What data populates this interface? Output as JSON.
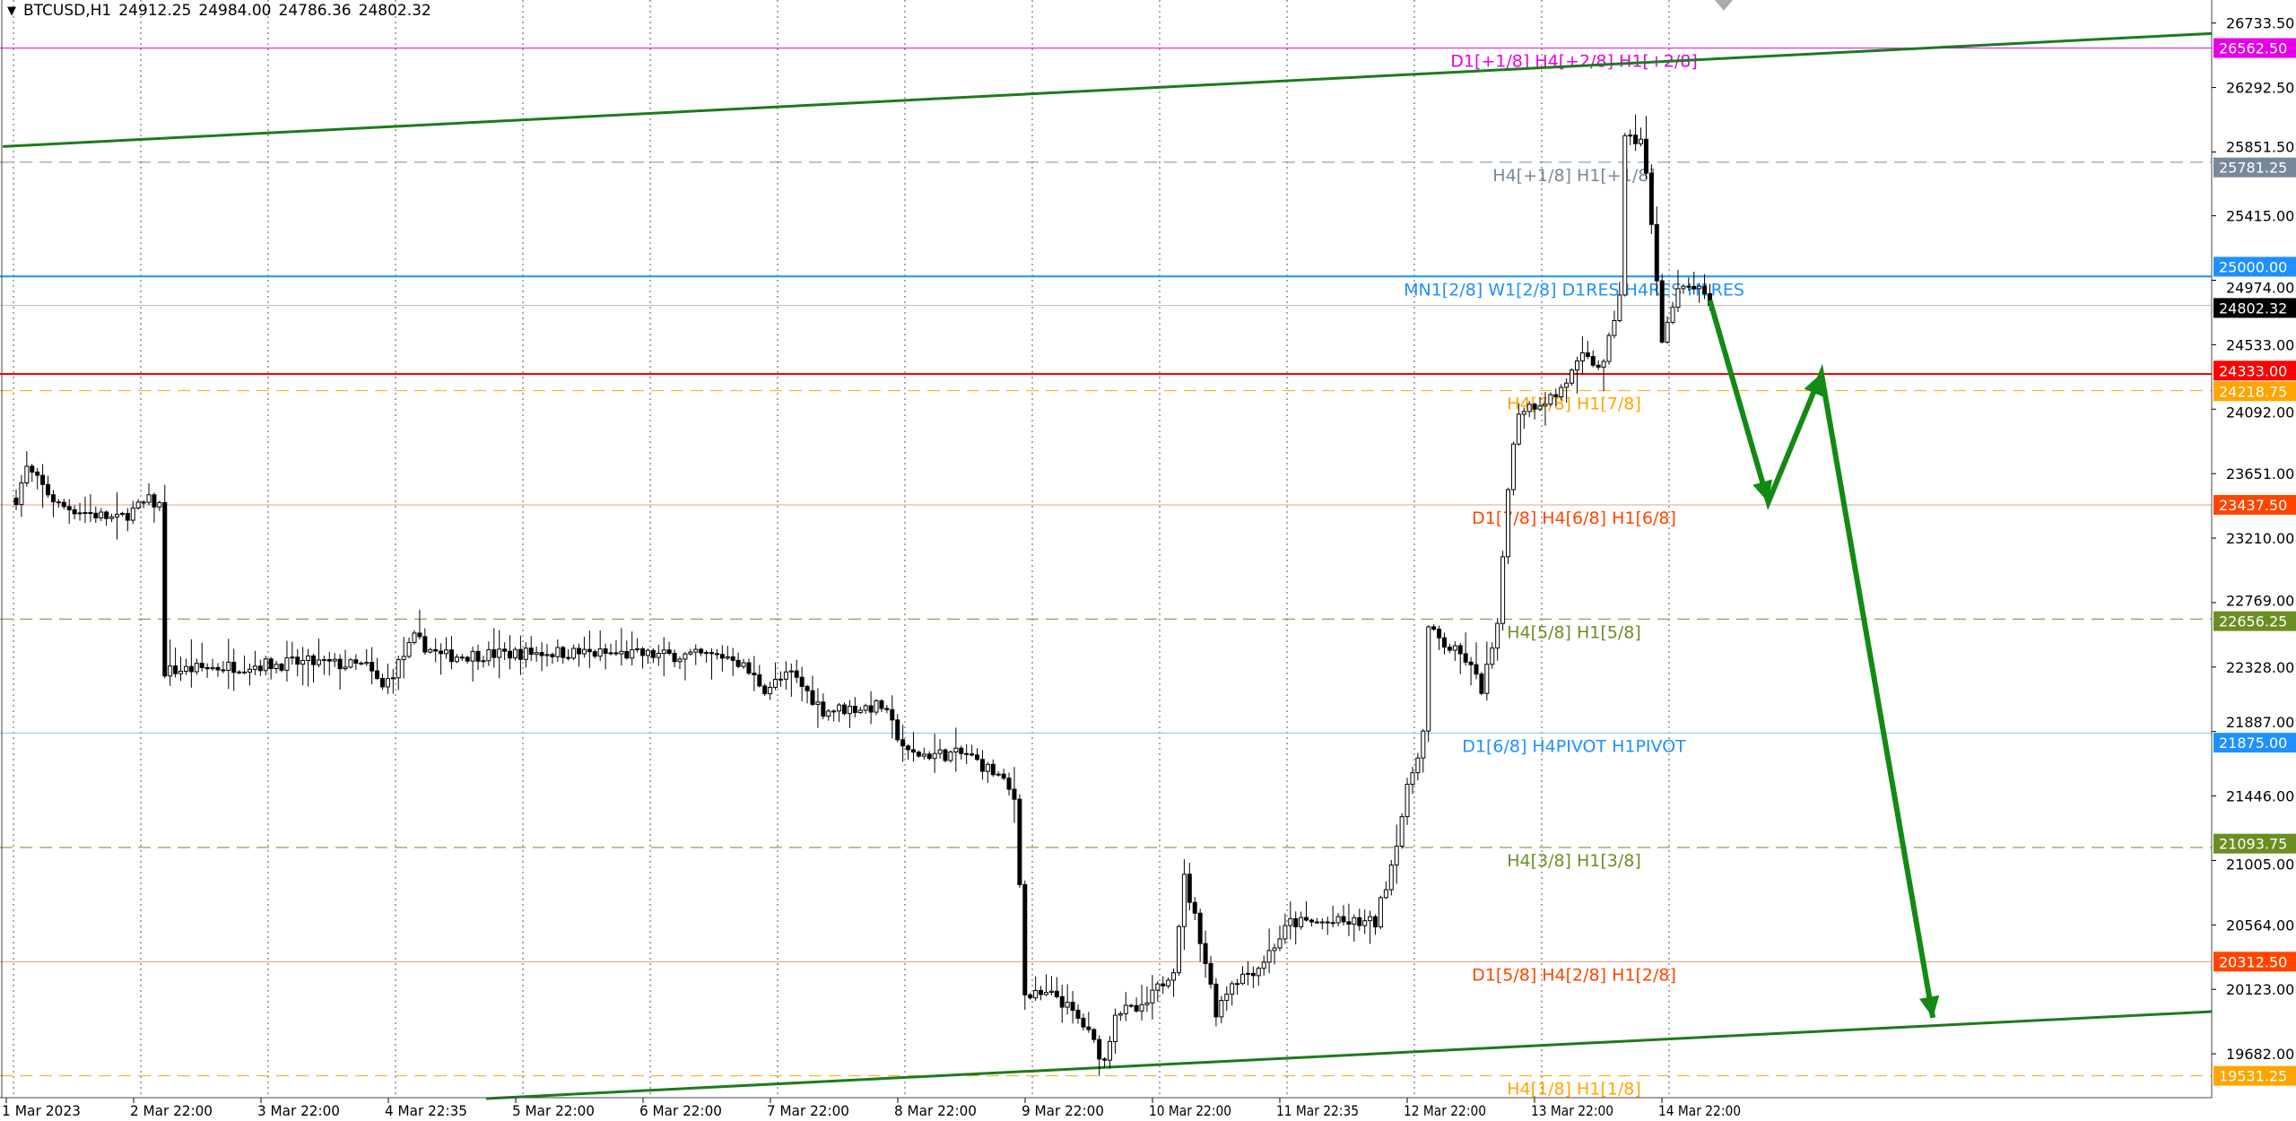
{
  "header": {
    "symbol": "BTCUSD,H1",
    "open": "24912.25",
    "high": "24984.00",
    "low": "24786.36",
    "close": "24802.32",
    "menu_icon": "triangle-down-icon"
  },
  "chart_data": {
    "type": "candlestick",
    "symbol": "BTCUSD",
    "timeframe": "H1",
    "ylim": [
      19400,
      26900
    ],
    "grid": true,
    "price_ticks": [
      "26733.50",
      "26292.50",
      "25851.50",
      "25415.00",
      "24974.00",
      "24533.00",
      "24092.00",
      "23651.00",
      "23210.00",
      "22769.00",
      "22328.00",
      "21887.00",
      "21446.00",
      "21005.00",
      "20564.00",
      "20123.00",
      "19682.00"
    ],
    "time_labels": [
      "1 Mar 2023",
      "2 Mar 22:00",
      "3 Mar 22:00",
      "4 Mar 22:35",
      "5 Mar 22:00",
      "6 Mar 22:00",
      "7 Mar 22:00",
      "8 Mar 22:00",
      "9 Mar 22:00",
      "10 Mar 22:00",
      "11 Mar 22:35",
      "12 Mar 22:00",
      "13 Mar 22:00",
      "14 Mar 22:00"
    ],
    "price_path_hour_close": [
      [
        0,
        23484
      ],
      [
        2,
        23685
      ],
      [
        8,
        23434
      ],
      [
        19,
        23334
      ],
      [
        25,
        23464
      ],
      [
        27,
        23434
      ],
      [
        28,
        22300
      ],
      [
        40,
        22332
      ],
      [
        55,
        22360
      ],
      [
        66,
        22332
      ],
      [
        69,
        22182
      ],
      [
        75,
        22520
      ],
      [
        80,
        22402
      ],
      [
        100,
        22430
      ],
      [
        120,
        22410
      ],
      [
        135,
        22402
      ],
      [
        141,
        22182
      ],
      [
        146,
        22280
      ],
      [
        152,
        22032
      ],
      [
        163,
        22060
      ],
      [
        168,
        21731
      ],
      [
        179,
        21731
      ],
      [
        185,
        21581
      ],
      [
        188,
        21431
      ],
      [
        189,
        20880
      ],
      [
        190,
        20078
      ],
      [
        196,
        20078
      ],
      [
        201,
        19877
      ],
      [
        205,
        19627
      ],
      [
        207,
        19977
      ],
      [
        212,
        19977
      ],
      [
        218,
        20278
      ],
      [
        220,
        20880
      ],
      [
        223,
        20478
      ],
      [
        226,
        19977
      ],
      [
        229,
        20178
      ],
      [
        234,
        20278
      ],
      [
        240,
        20579
      ],
      [
        256,
        20579
      ],
      [
        259,
        20980
      ],
      [
        262,
        21481
      ],
      [
        265,
        21882
      ],
      [
        266,
        22583
      ],
      [
        269,
        22482
      ],
      [
        273,
        22382
      ],
      [
        276,
        22182
      ],
      [
        279,
        22583
      ],
      [
        281,
        23585
      ],
      [
        283,
        24086
      ],
      [
        290,
        24186
      ],
      [
        295,
        24436
      ],
      [
        299,
        24386
      ],
      [
        302,
        24887
      ],
      [
        303,
        25939
      ],
      [
        306,
        25939
      ],
      [
        307,
        25689
      ],
      [
        309,
        24987
      ],
      [
        310,
        24587
      ],
      [
        313,
        24887
      ],
      [
        316,
        24937
      ],
      [
        319,
        24802
      ]
    ],
    "levels": [
      {
        "price": 26562.5,
        "tag": "26562.50",
        "label": "D1[+1/8] H4[+2/8] H1[+2/8]",
        "color": "#e600e6",
        "style": "solid"
      },
      {
        "price": 25781.25,
        "tag": "25781.25",
        "label": "H4[+1/8] H1[+1/8]",
        "color": "#778899",
        "style": "dashed"
      },
      {
        "price": 25000,
        "tag": "25000.00",
        "label": "MN1[2/8] W1[2/8] D1RES H4RES H1RES",
        "color": "#1e90ff",
        "style": "solid"
      },
      {
        "price": 24802.32,
        "tag": "24802.32",
        "label": "",
        "color": "#000000",
        "style": "current"
      },
      {
        "price": 24333,
        "tag": "24333.00",
        "label": "",
        "color": "#ff0000",
        "style": "solid"
      },
      {
        "price": 24218.75,
        "tag": "24218.75",
        "label": "H4[7/8] H1[7/8]",
        "color": "#ffa500",
        "style": "dashed"
      },
      {
        "price": 23437.5,
        "tag": "23437.50",
        "label": "D1[7/8] H4[6/8] H1[6/8]",
        "color": "#ff4500",
        "style": "solid"
      },
      {
        "price": 22656.25,
        "tag": "22656.25",
        "label": "H4[5/8] H1[5/8]",
        "color": "#6b8e23",
        "style": "dashed"
      },
      {
        "price": 21875,
        "tag": "21875.00",
        "label": "D1[6/8] H4PIVOT H1PIVOT",
        "color": "#1e90ff",
        "style": "solid"
      },
      {
        "price": 21093.75,
        "tag": "21093.75",
        "label": "H4[3/8] H1[3/8]",
        "color": "#6b8e23",
        "style": "dashed"
      },
      {
        "price": 20312.5,
        "tag": "20312.50",
        "label": "D1[5/8] H4[2/8] H1[2/8]",
        "color": "#ff4500",
        "style": "solid"
      },
      {
        "price": 19531.25,
        "tag": "19531.25",
        "label": "H4[1/8] H1[1/8]",
        "color": "#ffa500",
        "style": "dashed"
      }
    ],
    "trendlines": [
      {
        "name": "upper-channel",
        "color": "#1e7a1e",
        "points": [
          [
            -2.5,
            25889
          ],
          [
            429,
            26691
          ]
        ]
      },
      {
        "name": "lower-channel",
        "color": "#1e7a1e",
        "points": [
          [
            88.5,
            19376
          ],
          [
            429,
            19999
          ]
        ]
      }
    ],
    "forecast_arrow": {
      "color": "#138a13",
      "points": [
        [
          319,
          24837
        ],
        [
          330,
          23455
        ],
        [
          340,
          24337
        ],
        [
          361,
          19929
        ]
      ]
    }
  }
}
